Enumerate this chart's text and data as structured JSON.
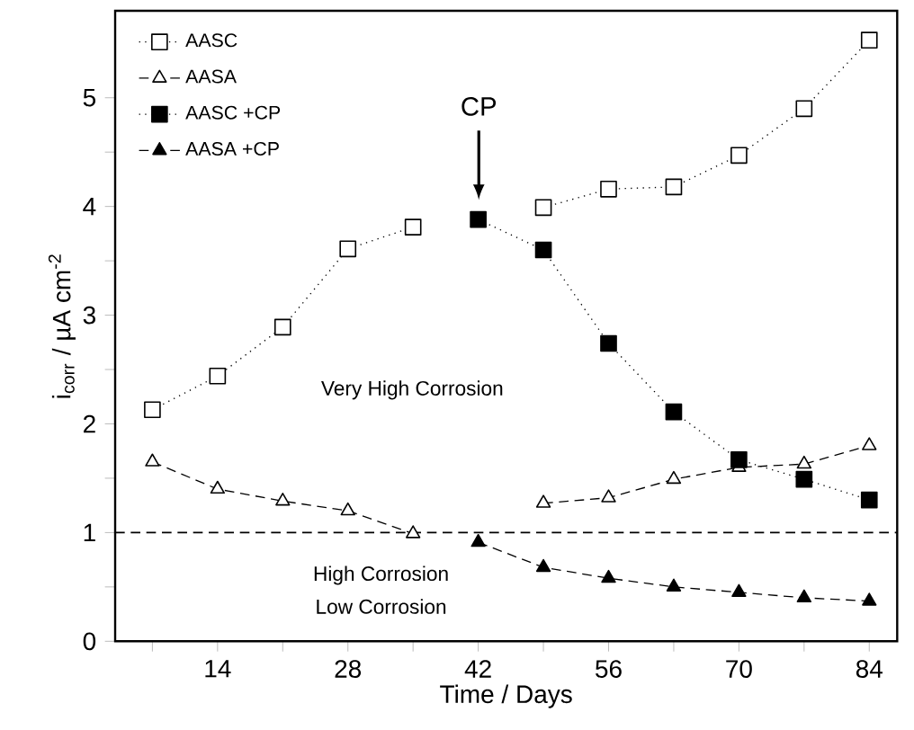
{
  "chart_data": {
    "type": "line",
    "xlabel": "Time / Days",
    "ylabel": "i$_{corr}$ / µA cm$^{-2}$",
    "xlim": [
      3,
      87
    ],
    "ylim": [
      0,
      5.8
    ],
    "xticks": [
      {
        "value": 7,
        "label": null
      },
      14,
      {
        "value": 21,
        "label": null
      },
      28,
      {
        "value": 35,
        "label": null
      },
      42,
      {
        "value": 49,
        "label": null
      },
      56,
      {
        "value": 63,
        "label": null
      },
      70,
      {
        "value": 77,
        "label": null
      },
      84
    ],
    "yticks": [
      0,
      {
        "value": 0.5,
        "label": null
      },
      1,
      {
        "value": 1.5,
        "label": null
      },
      2,
      {
        "value": 2.5,
        "label": null
      },
      3,
      {
        "value": 3.5,
        "label": null
      },
      4,
      {
        "value": 4.5,
        "label": null
      },
      5
    ],
    "legend": "top left",
    "grid": false,
    "series": [
      {
        "name": "AASC",
        "color": "#000000",
        "marker": "square-open",
        "line_style": "dotted",
        "x": [
          7,
          14,
          21,
          28,
          35,
          42,
          49,
          56,
          63,
          70,
          77,
          84
        ],
        "values": [
          2.13,
          2.44,
          2.89,
          3.61,
          3.81,
          null,
          3.99,
          4.16,
          4.18,
          4.47,
          4.9,
          5.53
        ]
      },
      {
        "name": "AASA",
        "color": "#000000",
        "marker": "triangle-open",
        "line_style": "dashed",
        "x": [
          7,
          14,
          21,
          28,
          35,
          42,
          49,
          56,
          63,
          70,
          77,
          84
        ],
        "values": [
          1.65,
          1.4,
          1.29,
          1.2,
          0.99,
          null,
          1.27,
          1.32,
          1.49,
          1.6,
          1.63,
          1.8
        ]
      },
      {
        "name": "AASC +CP",
        "color": "#000000",
        "marker": "square",
        "line_style": "dotted",
        "x": [
          42,
          49,
          56,
          63,
          70,
          77,
          84
        ],
        "values": [
          3.88,
          3.6,
          2.74,
          2.11,
          1.67,
          1.49,
          1.3
        ]
      },
      {
        "name": "AASA  +CP",
        "color": "#000000",
        "marker": "triangle",
        "line_style": "dashed",
        "x": [
          42,
          49,
          56,
          63,
          70,
          77,
          84
        ],
        "values": [
          0.91,
          0.68,
          0.58,
          0.5,
          0.45,
          0.4,
          0.37
        ]
      }
    ],
    "ref_lines": [
      {
        "axis": "y",
        "value": 1,
        "line_style": "dashed"
      }
    ],
    "annotations": [
      "CP",
      "Very High Corrosion",
      "High Corrosion",
      "Low Corrosion"
    ]
  }
}
